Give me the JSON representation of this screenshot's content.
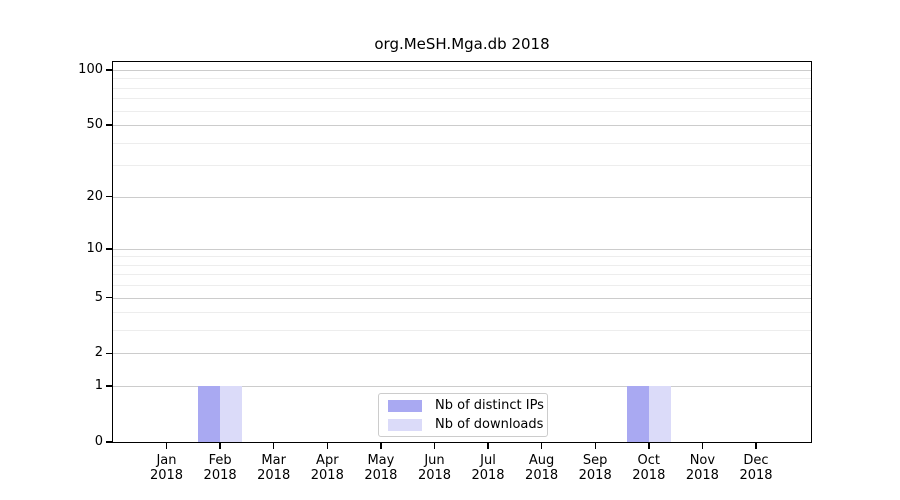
{
  "figure": {
    "title": "org.MeSH.Mga.db 2018"
  },
  "chart_data": {
    "type": "bar",
    "title": "org.MeSH.Mga.db 2018",
    "categories": [
      "Jan",
      "Feb",
      "Mar",
      "Apr",
      "May",
      "Jun",
      "Jul",
      "Aug",
      "Sep",
      "Oct",
      "Nov",
      "Dec"
    ],
    "category_year": "2018",
    "series": [
      {
        "name": "Nb of distinct IPs",
        "color": "#a9a9f2",
        "values": [
          0,
          1,
          0,
          0,
          0,
          0,
          0,
          0,
          0,
          1,
          0,
          0
        ]
      },
      {
        "name": "Nb of downloads",
        "color": "#dbdbf9",
        "values": [
          0,
          1,
          0,
          0,
          0,
          0,
          0,
          0,
          0,
          1,
          0,
          0
        ]
      }
    ],
    "xlabel": "",
    "ylabel": "",
    "yscale": "log1p",
    "yticks": [
      0,
      1,
      2,
      5,
      10,
      20,
      50,
      100
    ],
    "minor_gridlines": [
      3,
      4,
      6,
      7,
      8,
      9,
      30,
      40,
      60,
      70,
      80,
      90
    ],
    "ylim": [
      0,
      111
    ],
    "grid": true,
    "legend_position": "bottom-center",
    "colors": {
      "major_grid": "#cccccc",
      "minor_grid": "#ededed",
      "axis": "#000000",
      "background": "#ffffff"
    }
  }
}
